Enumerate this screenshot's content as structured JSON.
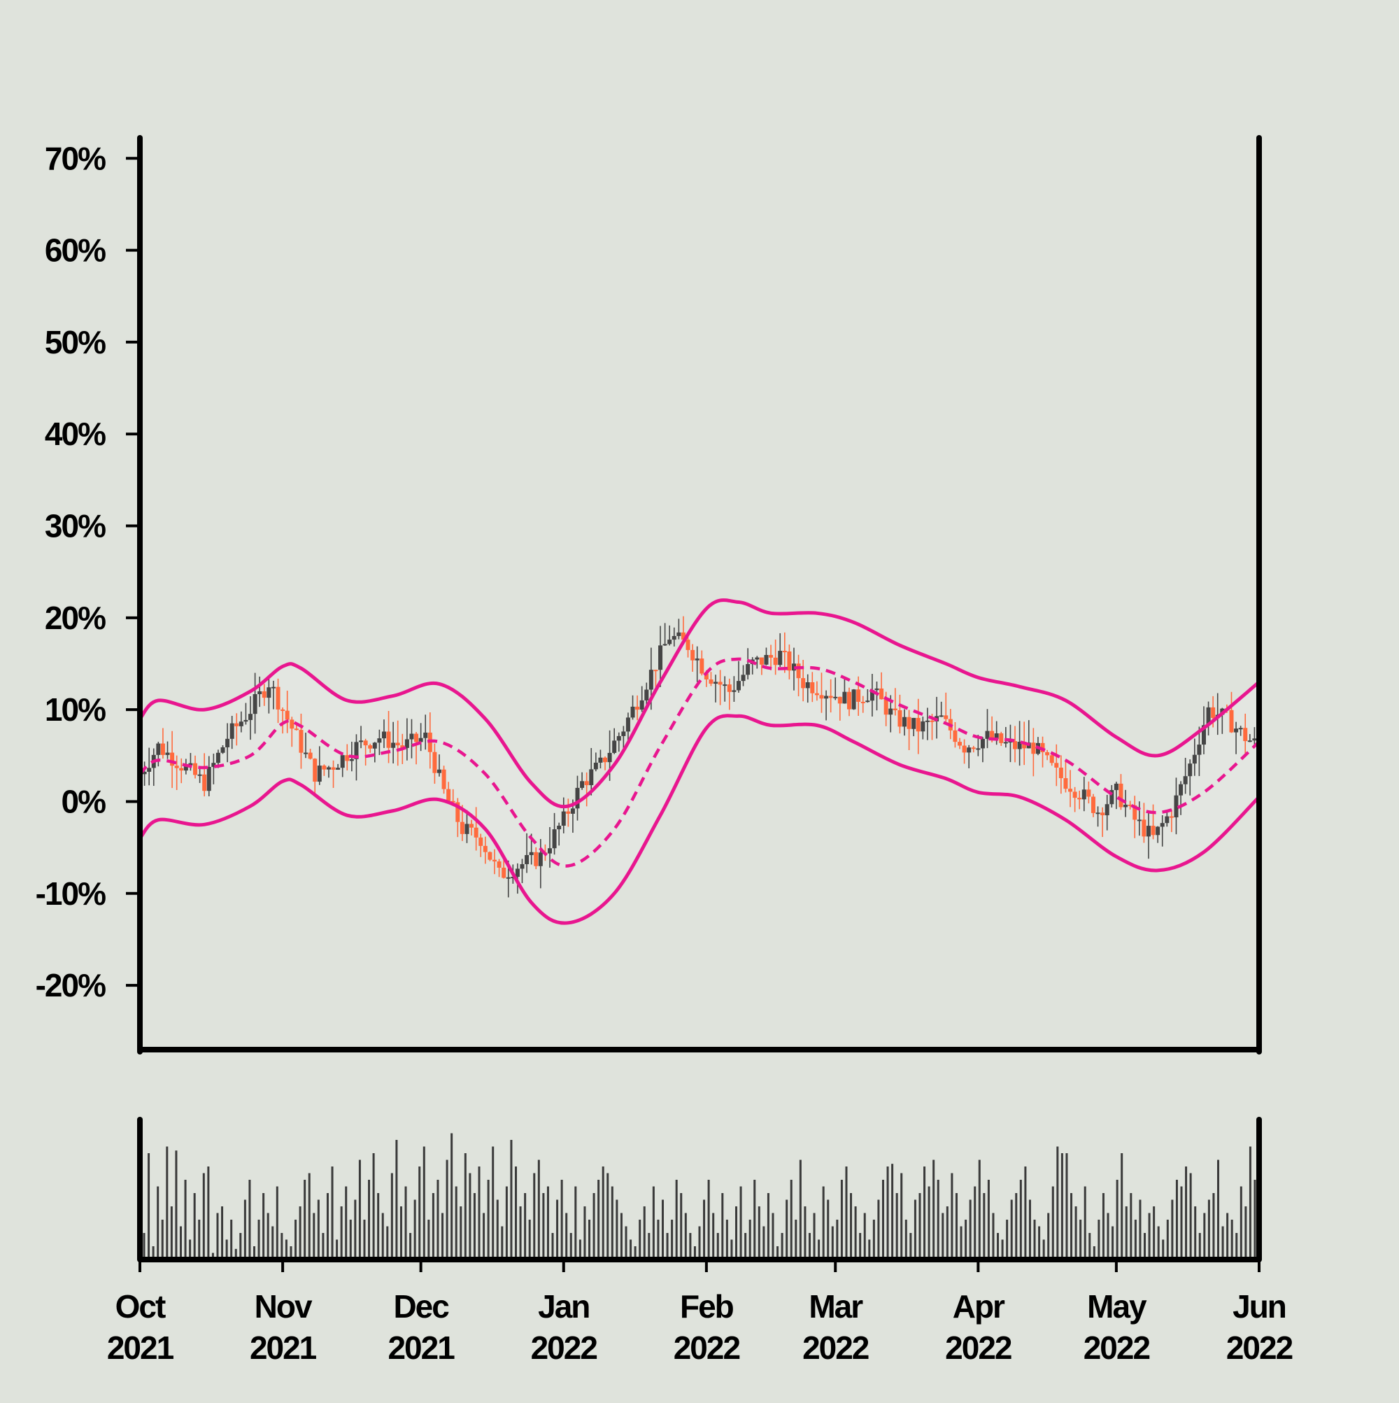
{
  "colors": {
    "background": "#dfe3dc",
    "axis": "#000000",
    "candle_up": "#454545",
    "candle_down": "#ff6a3d",
    "band_line": "#e8168f",
    "band_fill": "#e3e6e1",
    "volume_bar": "#3a3a3a"
  },
  "chart_data": {
    "type": "candlestick",
    "indicator": "bollinger-bands",
    "y_axis": {
      "format": "percent",
      "ylim": [
        -0.27,
        0.72
      ],
      "ticks": [
        0.7,
        0.6,
        0.5,
        0.4,
        0.3,
        0.2,
        0.1,
        0.0,
        -0.1,
        -0.2
      ],
      "tick_labels": [
        "70%",
        "60%",
        "50%",
        "40%",
        "30%",
        "20%",
        "10%",
        "0%",
        "-10%",
        "-20%"
      ]
    },
    "x_axis": {
      "start": "2021-10-01",
      "end": "2022-06-01",
      "ticks": [
        {
          "date": "2021-10-01",
          "month": "Oct",
          "year": "2021"
        },
        {
          "date": "2021-11-01",
          "month": "Nov",
          "year": "2021"
        },
        {
          "date": "2021-12-01",
          "month": "Dec",
          "year": "2021"
        },
        {
          "date": "2022-01-01",
          "month": "Jan",
          "year": "2022"
        },
        {
          "date": "2022-02-01",
          "month": "Feb",
          "year": "2022"
        },
        {
          "date": "2022-03-01",
          "month": "Mar",
          "year": "2022"
        },
        {
          "date": "2022-04-01",
          "month": "Apr",
          "year": "2022"
        },
        {
          "date": "2022-05-01",
          "month": "May",
          "year": "2022"
        },
        {
          "date": "2022-06-01",
          "month": "Jun",
          "year": "2022"
        }
      ]
    },
    "price_path": [
      [
        "2021-10-01",
        0.03
      ],
      [
        "2021-10-05",
        0.06
      ],
      [
        "2021-10-10",
        0.04
      ],
      [
        "2021-10-15",
        0.02
      ],
      [
        "2021-10-20",
        0.07
      ],
      [
        "2021-10-25",
        0.1
      ],
      [
        "2021-10-29",
        0.13
      ],
      [
        "2021-11-03",
        0.08
      ],
      [
        "2021-11-08",
        0.03
      ],
      [
        "2021-11-12",
        0.04
      ],
      [
        "2021-11-17",
        0.06
      ],
      [
        "2021-11-22",
        0.07
      ],
      [
        "2021-11-27",
        0.06
      ],
      [
        "2021-12-02",
        0.07
      ],
      [
        "2021-12-06",
        0.01
      ],
      [
        "2021-12-10",
        -0.03
      ],
      [
        "2021-12-14",
        -0.04
      ],
      [
        "2021-12-18",
        -0.08
      ],
      [
        "2021-12-22",
        -0.07
      ],
      [
        "2021-12-27",
        -0.06
      ],
      [
        "2022-01-01",
        -0.02
      ],
      [
        "2022-01-05",
        0.02
      ],
      [
        "2022-01-09",
        0.04
      ],
      [
        "2022-01-14",
        0.08
      ],
      [
        "2022-01-19",
        0.13
      ],
      [
        "2022-01-24",
        0.18
      ],
      [
        "2022-01-28",
        0.17
      ],
      [
        "2022-02-01",
        0.14
      ],
      [
        "2022-02-06",
        0.12
      ],
      [
        "2022-02-11",
        0.15
      ],
      [
        "2022-02-17",
        0.16
      ],
      [
        "2022-02-22",
        0.13
      ],
      [
        "2022-02-27",
        0.12
      ],
      [
        "2022-03-04",
        0.11
      ],
      [
        "2022-03-09",
        0.12
      ],
      [
        "2022-03-14",
        0.09
      ],
      [
        "2022-03-19",
        0.08
      ],
      [
        "2022-03-24",
        0.09
      ],
      [
        "2022-03-29",
        0.06
      ],
      [
        "2022-04-03",
        0.07
      ],
      [
        "2022-04-08",
        0.06
      ],
      [
        "2022-04-13",
        0.06
      ],
      [
        "2022-04-18",
        0.03
      ],
      [
        "2022-04-23",
        0.01
      ],
      [
        "2022-04-27",
        -0.01
      ],
      [
        "2022-05-01",
        0.01
      ],
      [
        "2022-05-05",
        -0.02
      ],
      [
        "2022-05-09",
        -0.04
      ],
      [
        "2022-05-13",
        -0.01
      ],
      [
        "2022-05-17",
        0.04
      ],
      [
        "2022-05-21",
        0.1
      ],
      [
        "2022-05-25",
        0.09
      ],
      [
        "2022-05-29",
        0.07
      ],
      [
        "2022-06-01",
        0.06
      ]
    ],
    "bollinger": {
      "upper": [
        [
          "2021-10-01",
          0.09
        ],
        [
          "2021-10-05",
          0.11
        ],
        [
          "2021-10-15",
          0.1
        ],
        [
          "2021-10-25",
          0.12
        ],
        [
          "2021-11-01",
          0.147
        ],
        [
          "2021-11-05",
          0.145
        ],
        [
          "2021-11-15",
          0.11
        ],
        [
          "2021-11-25",
          0.115
        ],
        [
          "2021-12-05",
          0.128
        ],
        [
          "2021-12-15",
          0.09
        ],
        [
          "2021-12-25",
          0.02
        ],
        [
          "2022-01-02",
          -0.005
        ],
        [
          "2022-01-12",
          0.04
        ],
        [
          "2022-01-22",
          0.13
        ],
        [
          "2022-02-01",
          0.21
        ],
        [
          "2022-02-08",
          0.217
        ],
        [
          "2022-02-15",
          0.205
        ],
        [
          "2022-02-25",
          0.205
        ],
        [
          "2022-03-05",
          0.195
        ],
        [
          "2022-03-15",
          0.17
        ],
        [
          "2022-03-25",
          0.15
        ],
        [
          "2022-04-01",
          0.135
        ],
        [
          "2022-04-10",
          0.125
        ],
        [
          "2022-04-20",
          0.11
        ],
        [
          "2022-05-01",
          0.07
        ],
        [
          "2022-05-10",
          0.05
        ],
        [
          "2022-05-20",
          0.08
        ],
        [
          "2022-06-01",
          0.13
        ]
      ],
      "middle": [
        [
          "2021-10-01",
          0.03
        ],
        [
          "2021-10-05",
          0.045
        ],
        [
          "2021-10-15",
          0.037
        ],
        [
          "2021-10-25",
          0.05
        ],
        [
          "2021-11-01",
          0.085
        ],
        [
          "2021-11-05",
          0.082
        ],
        [
          "2021-11-15",
          0.05
        ],
        [
          "2021-11-25",
          0.055
        ],
        [
          "2021-12-05",
          0.065
        ],
        [
          "2021-12-15",
          0.03
        ],
        [
          "2021-12-25",
          -0.04
        ],
        [
          "2022-01-02",
          -0.07
        ],
        [
          "2022-01-12",
          -0.03
        ],
        [
          "2022-01-22",
          0.06
        ],
        [
          "2022-02-01",
          0.14
        ],
        [
          "2022-02-08",
          0.155
        ],
        [
          "2022-02-15",
          0.145
        ],
        [
          "2022-02-25",
          0.145
        ],
        [
          "2022-03-05",
          0.13
        ],
        [
          "2022-03-15",
          0.105
        ],
        [
          "2022-03-25",
          0.085
        ],
        [
          "2022-04-01",
          0.07
        ],
        [
          "2022-04-10",
          0.065
        ],
        [
          "2022-04-20",
          0.045
        ],
        [
          "2022-05-01",
          0.005
        ],
        [
          "2022-05-10",
          -0.012
        ],
        [
          "2022-05-20",
          0.01
        ],
        [
          "2022-06-01",
          0.065
        ]
      ],
      "lower": [
        [
          "2021-10-01",
          -0.04
        ],
        [
          "2021-10-05",
          -0.02
        ],
        [
          "2021-10-15",
          -0.025
        ],
        [
          "2021-10-25",
          -0.005
        ],
        [
          "2021-11-01",
          0.022
        ],
        [
          "2021-11-05",
          0.018
        ],
        [
          "2021-11-15",
          -0.015
        ],
        [
          "2021-11-25",
          -0.01
        ],
        [
          "2021-12-05",
          0.002
        ],
        [
          "2021-12-15",
          -0.03
        ],
        [
          "2021-12-25",
          -0.11
        ],
        [
          "2022-01-02",
          -0.132
        ],
        [
          "2022-01-12",
          -0.1
        ],
        [
          "2022-01-22",
          -0.015
        ],
        [
          "2022-02-01",
          0.08
        ],
        [
          "2022-02-08",
          0.093
        ],
        [
          "2022-02-15",
          0.083
        ],
        [
          "2022-02-25",
          0.083
        ],
        [
          "2022-03-05",
          0.065
        ],
        [
          "2022-03-15",
          0.04
        ],
        [
          "2022-03-25",
          0.025
        ],
        [
          "2022-04-01",
          0.01
        ],
        [
          "2022-04-10",
          0.005
        ],
        [
          "2022-04-20",
          -0.02
        ],
        [
          "2022-05-01",
          -0.06
        ],
        [
          "2022-05-10",
          -0.075
        ],
        [
          "2022-05-20",
          -0.055
        ],
        [
          "2022-06-01",
          0.005
        ]
      ]
    },
    "volume": {
      "unit": "relative",
      "values": [
        0.2,
        0.8,
        0.1,
        0.55,
        0.3,
        0.85,
        0.4,
        0.82,
        0.25,
        0.6,
        0.15,
        0.5,
        0.3,
        0.65,
        0.7,
        0.05,
        0.35,
        0.4,
        0.15,
        0.3,
        0.08,
        0.2,
        0.45,
        0.6,
        0.1,
        0.3,
        0.5,
        0.35,
        0.25,
        0.55,
        0.2,
        0.15,
        0.1,
        0.3,
        0.4,
        0.6,
        0.65,
        0.35,
        0.45,
        0.2,
        0.5,
        0.7,
        0.15,
        0.4,
        0.55,
        0.3,
        0.45,
        0.75,
        0.3,
        0.6,
        0.8,
        0.5,
        0.35,
        0.25,
        0.65,
        0.9,
        0.4,
        0.55,
        0.2,
        0.45,
        0.7,
        0.85,
        0.3,
        0.5,
        0.6,
        0.35,
        0.75,
        0.95,
        0.55,
        0.4,
        0.8,
        0.65,
        0.5,
        0.7,
        0.35,
        0.6,
        0.85,
        0.45,
        0.25,
        0.55,
        0.9,
        0.7,
        0.4,
        0.5,
        0.3,
        0.65,
        0.75,
        0.5,
        0.55,
        0.2,
        0.45,
        0.6,
        0.35,
        0.2,
        0.55,
        0.15,
        0.4,
        0.3,
        0.5,
        0.6,
        0.7,
        0.65,
        0.55,
        0.45,
        0.35,
        0.25,
        0.15,
        0.1,
        0.3,
        0.4,
        0.2,
        0.55,
        0.3,
        0.45,
        0.2,
        0.3,
        0.6,
        0.5,
        0.35,
        0.2,
        0.1,
        0.25,
        0.45,
        0.6,
        0.35,
        0.2,
        0.5,
        0.3,
        0.15,
        0.4,
        0.55,
        0.2,
        0.3,
        0.6,
        0.4,
        0.25,
        0.5,
        0.35,
        0.1,
        0.2,
        0.45,
        0.6,
        0.3,
        0.75,
        0.4,
        0.2,
        0.35,
        0.15,
        0.55,
        0.45,
        0.25,
        0.3,
        0.6,
        0.7,
        0.5,
        0.4,
        0.2,
        0.35,
        0.15,
        0.3,
        0.45,
        0.6,
        0.7,
        0.72,
        0.5,
        0.65,
        0.3,
        0.2,
        0.45,
        0.5,
        0.7,
        0.55,
        0.75,
        0.6,
        0.35,
        0.4,
        0.65,
        0.5,
        0.25,
        0.3,
        0.45,
        0.55,
        0.75,
        0.5,
        0.6,
        0.35,
        0.2,
        0.15,
        0.3,
        0.45,
        0.5,
        0.6,
        0.7,
        0.45,
        0.3,
        0.25,
        0.15,
        0.35,
        0.55,
        0.85,
        0.8,
        0.8,
        0.5,
        0.4,
        0.3,
        0.55,
        0.2,
        0.1,
        0.3,
        0.5,
        0.35,
        0.25,
        0.6,
        0.8,
        0.4,
        0.5,
        0.3,
        0.45,
        0.2,
        0.35,
        0.4,
        0.25,
        0.15,
        0.3,
        0.45,
        0.6,
        0.55,
        0.7,
        0.65,
        0.4,
        0.2,
        0.35,
        0.45,
        0.5,
        0.75,
        0.25,
        0.35,
        0.3,
        0.2,
        0.55,
        0.4,
        0.85,
        0.6
      ]
    }
  }
}
